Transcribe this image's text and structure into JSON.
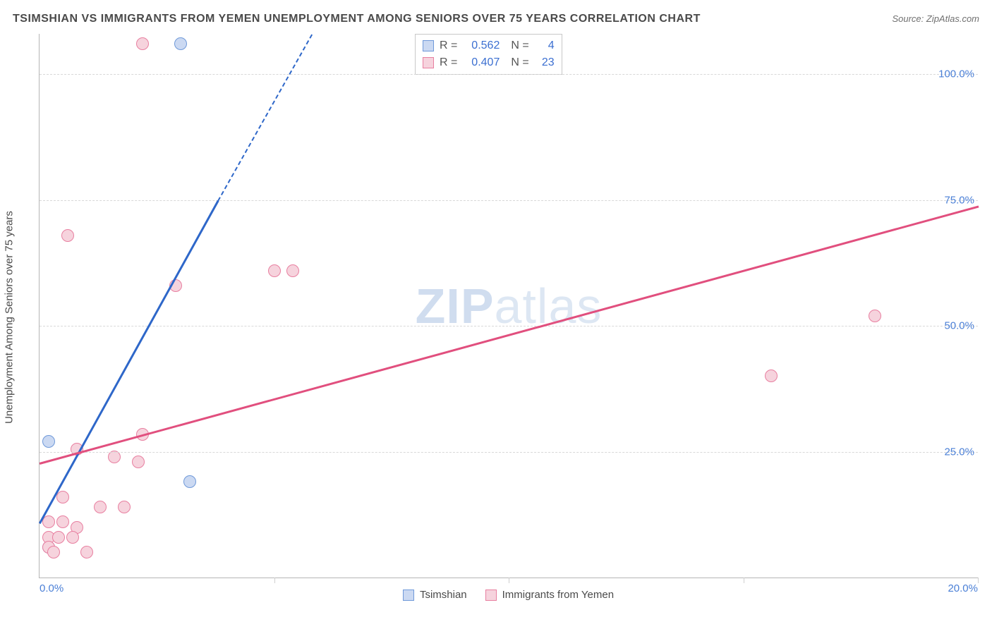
{
  "title": "TSIMSHIAN VS IMMIGRANTS FROM YEMEN UNEMPLOYMENT AMONG SENIORS OVER 75 YEARS CORRELATION CHART",
  "source": "Source: ZipAtlas.com",
  "y_axis_label": "Unemployment Among Seniors over 75 years",
  "watermark_bold": "ZIP",
  "watermark_rest": "atlas",
  "chart": {
    "type": "scatter-with-regression",
    "background_color": "#ffffff",
    "grid_color": "#d8d8d8",
    "axis_color": "#b5b5b5",
    "tick_label_color": "#4a7fd6",
    "xlim": [
      0,
      20
    ],
    "ylim": [
      0,
      108
    ],
    "x_ticks": [
      0,
      5,
      10,
      15,
      20
    ],
    "x_tick_labels": [
      "0.0%",
      "",
      "",
      "",
      "20.0%"
    ],
    "y_ticks": [
      25,
      50,
      75,
      100
    ],
    "y_tick_labels": [
      "25.0%",
      "50.0%",
      "75.0%",
      "100.0%"
    ],
    "point_radius": 9,
    "point_border_width": 1.5,
    "series": [
      {
        "name": "Tsimshian",
        "fill": "#cbd9f2",
        "stroke": "#6f99d9",
        "line_color": "#2e67c9",
        "R": "0.562",
        "N": "4",
        "points": [
          {
            "x": 0.2,
            "y": 27
          },
          {
            "x": 3.0,
            "y": 106
          },
          {
            "x": 3.2,
            "y": 19
          },
          {
            "x": 0.2,
            "y": 6
          }
        ],
        "regression": {
          "x1": 0,
          "y1": 11,
          "x2_solid": 3.8,
          "y2_solid": 75,
          "x2_dash": 5.8,
          "y2_dash": 108
        }
      },
      {
        "name": "Immigrants from Yemen",
        "fill": "#f6d3dd",
        "stroke": "#e87fa0",
        "line_color": "#e14f7e",
        "R": "0.407",
        "N": "23",
        "points": [
          {
            "x": 2.2,
            "y": 106
          },
          {
            "x": 0.6,
            "y": 68
          },
          {
            "x": 2.9,
            "y": 58
          },
          {
            "x": 5.0,
            "y": 61
          },
          {
            "x": 5.4,
            "y": 61
          },
          {
            "x": 17.8,
            "y": 52
          },
          {
            "x": 15.6,
            "y": 40
          },
          {
            "x": 2.2,
            "y": 28.5
          },
          {
            "x": 0.8,
            "y": 25.5
          },
          {
            "x": 1.6,
            "y": 24
          },
          {
            "x": 2.1,
            "y": 23
          },
          {
            "x": 0.5,
            "y": 16
          },
          {
            "x": 1.3,
            "y": 14
          },
          {
            "x": 1.8,
            "y": 14
          },
          {
            "x": 0.2,
            "y": 11
          },
          {
            "x": 0.5,
            "y": 11
          },
          {
            "x": 0.8,
            "y": 10
          },
          {
            "x": 0.2,
            "y": 8
          },
          {
            "x": 0.4,
            "y": 8
          },
          {
            "x": 0.7,
            "y": 8
          },
          {
            "x": 0.2,
            "y": 6
          },
          {
            "x": 0.3,
            "y": 5
          },
          {
            "x": 1.0,
            "y": 5
          }
        ],
        "regression": {
          "x1": 0,
          "y1": 23,
          "x2_solid": 20,
          "y2_solid": 74
        }
      }
    ],
    "stats_box_labels": {
      "r": "R =",
      "n": "N ="
    },
    "legend_items": [
      "Tsimshian",
      "Immigrants from Yemen"
    ]
  }
}
